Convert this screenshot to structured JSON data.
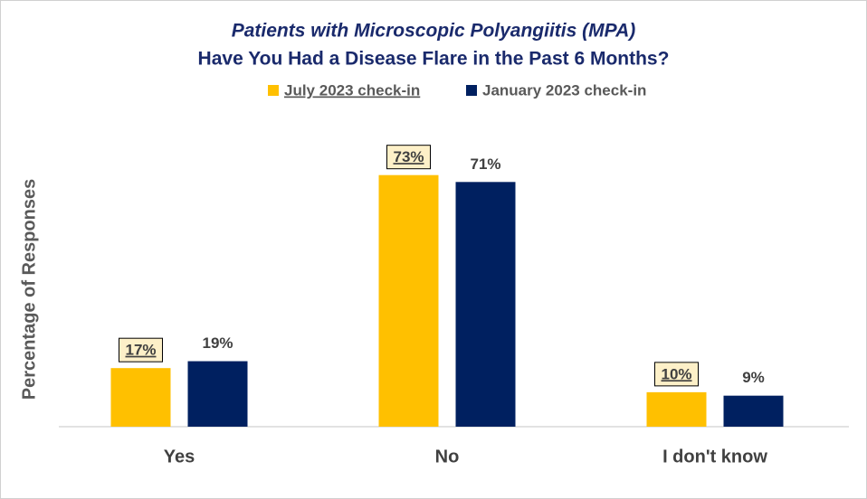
{
  "chart_data": {
    "type": "bar",
    "title": "Patients with Microscopic Polyangiitis (MPA)",
    "subtitle": "Have You Had a Disease Flare in the Past 6 Months?",
    "y_label": "Percentage of Responses",
    "categories": [
      "Yes",
      "No",
      "I don't know"
    ],
    "series": [
      {
        "name": "July 2023 check-in",
        "color": "#FFC000",
        "values": [
          17,
          73,
          10
        ],
        "value_labels": [
          "17%",
          "73%",
          "10%"
        ]
      },
      {
        "name": "January 2023 check-in",
        "color": "#002060",
        "values": [
          19,
          71,
          9
        ],
        "value_labels": [
          "19%",
          "71%",
          "9%"
        ]
      }
    ],
    "ylim": [
      0,
      80
    ],
    "legend": "top"
  }
}
